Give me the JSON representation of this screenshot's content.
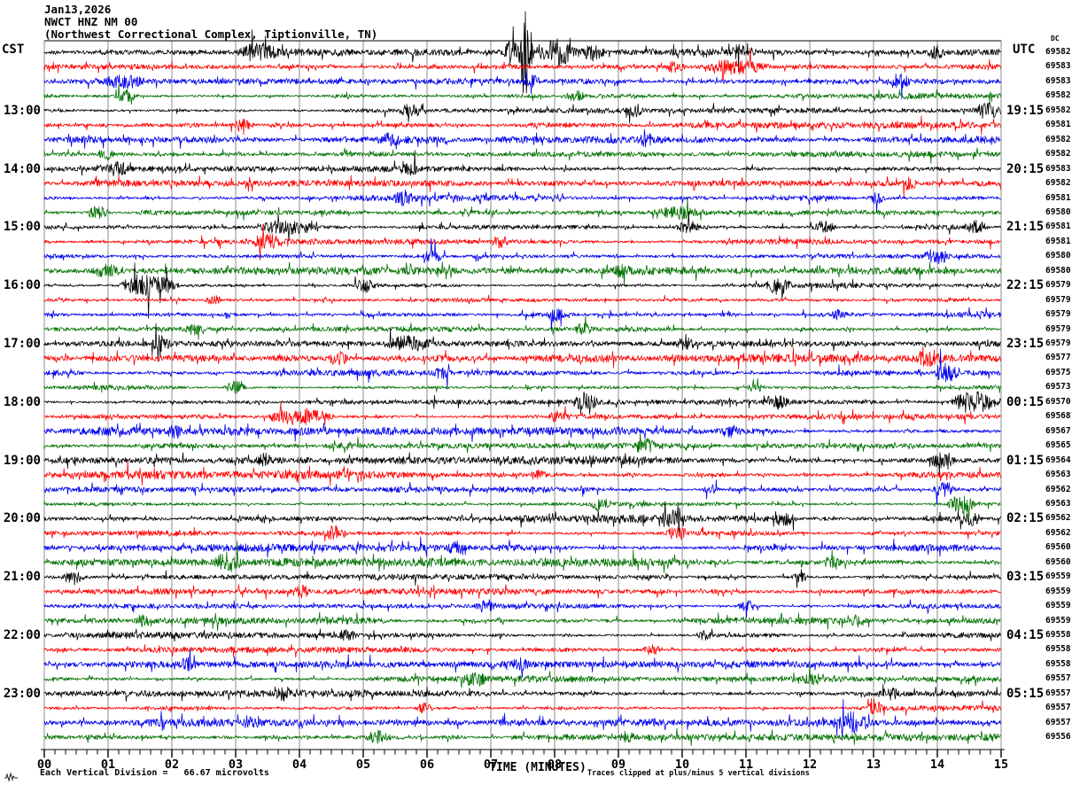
{
  "header": {
    "date": "Jan13,2026",
    "station": "NWCT HNZ NM 00",
    "location": "(Northwest Correctional Complex, Tiptionville, TN)"
  },
  "axes": {
    "left_tz": "CST",
    "right_tz": "UTC",
    "dc_label": "DC",
    "x_title": "TIME (MINUTES)",
    "x_ticks": [
      "00",
      "01",
      "02",
      "03",
      "04",
      "05",
      "06",
      "07",
      "08",
      "09",
      "10",
      "11",
      "12",
      "13",
      "14",
      "15"
    ],
    "left_times": [
      {
        "row": 4,
        "label": "13:00"
      },
      {
        "row": 8,
        "label": "14:00"
      },
      {
        "row": 12,
        "label": "15:00"
      },
      {
        "row": 16,
        "label": "16:00"
      },
      {
        "row": 20,
        "label": "17:00"
      },
      {
        "row": 24,
        "label": "18:00"
      },
      {
        "row": 28,
        "label": "19:00"
      },
      {
        "row": 32,
        "label": "20:00"
      },
      {
        "row": 36,
        "label": "21:00"
      },
      {
        "row": 40,
        "label": "22:00"
      },
      {
        "row": 44,
        "label": "23:00"
      }
    ],
    "right_times": [
      {
        "row": 4,
        "label": "19:15"
      },
      {
        "row": 8,
        "label": "20:15"
      },
      {
        "row": 12,
        "label": "21:15"
      },
      {
        "row": 16,
        "label": "22:15"
      },
      {
        "row": 20,
        "label": "23:15"
      },
      {
        "row": 24,
        "label": "00:15"
      },
      {
        "row": 28,
        "label": "01:15"
      },
      {
        "row": 32,
        "label": "02:15"
      },
      {
        "row": 36,
        "label": "03:15"
      },
      {
        "row": 40,
        "label": "04:15"
      },
      {
        "row": 44,
        "label": "05:15"
      }
    ]
  },
  "footer": {
    "scale_text": "Each Vertical Division =   66.67 microvolts",
    "clip_text": "Traces clipped at plus/minus 5 vertical divisions"
  },
  "colors": {
    "trace_cycle": [
      "#000000",
      "#ff0000",
      "#0000ee",
      "#007000"
    ],
    "gridline": "#8c8c8c",
    "axis": "#000000",
    "background": "#ffffff"
  },
  "chart_data": {
    "type": "line",
    "subtype": "helicorder-seismogram",
    "title": "NWCT HNZ NM 00  Jan13,2026",
    "xlabel": "TIME (MINUTES)",
    "x_range": [
      0,
      15
    ],
    "minutes_per_line": 15,
    "lines_per_hour": 4,
    "row_count": 48,
    "first_row_start_cst": "12:00",
    "last_row_start_cst": "23:45",
    "timezone_left": "CST",
    "timezone_right": "UTC",
    "trace_color_cycle": [
      "black",
      "red",
      "blue",
      "green"
    ],
    "grid": true,
    "dc_offsets": [
      69582,
      69583,
      69583,
      69582,
      69582,
      69581,
      69582,
      69582,
      69583,
      69582,
      69581,
      69580,
      69581,
      69581,
      69580,
      69580,
      69579,
      69579,
      69579,
      69579,
      69579,
      69577,
      69575,
      69573,
      69570,
      69568,
      69567,
      69565,
      69564,
      69563,
      69562,
      69563,
      69562,
      69562,
      69560,
      69560,
      69559,
      69559,
      69559,
      69559,
      69558,
      69558,
      69558,
      69557,
      69557,
      69557,
      69557,
      69556
    ],
    "scale_note": "Each Vertical Division =   66.67 microvolts",
    "clip_note": "Traces clipped at plus/minus 5 vertical divisions",
    "largest_event": {
      "row": 0,
      "minute": 7.5,
      "description": "large clipped spike on 12:00 CST line at ~7.5 min"
    },
    "events": [
      {
        "row": 0,
        "m0": 3.0,
        "m1": 3.7,
        "amp": 8
      },
      {
        "row": 0,
        "m0": 7.2,
        "m1": 7.45,
        "amp": 14
      },
      {
        "row": 0,
        "m0": 7.42,
        "m1": 7.68,
        "amp": 44
      },
      {
        "row": 0,
        "m0": 7.65,
        "m1": 8.4,
        "amp": 13
      },
      {
        "row": 0,
        "m0": 8.4,
        "m1": 8.8,
        "amp": 6
      },
      {
        "row": 0,
        "m0": 10.75,
        "m1": 11.0,
        "amp": 7
      },
      {
        "row": 0,
        "m0": 13.85,
        "m1": 14.15,
        "amp": 6
      },
      {
        "row": 1,
        "m0": 9.7,
        "m1": 10.05,
        "amp": 5
      },
      {
        "row": 1,
        "m0": 10.3,
        "m1": 11.4,
        "amp": 7
      },
      {
        "row": 2,
        "m0": 0.9,
        "m1": 1.6,
        "amp": 6
      },
      {
        "row": 2,
        "m0": 7.5,
        "m1": 7.8,
        "amp": 5
      },
      {
        "row": 2,
        "m0": 13.25,
        "m1": 13.6,
        "amp": 6
      },
      {
        "row": 3,
        "m0": 1.05,
        "m1": 1.5,
        "amp": 6
      },
      {
        "row": 3,
        "m0": 8.15,
        "m1": 8.5,
        "amp": 5
      },
      {
        "row": 4,
        "m0": 5.55,
        "m1": 5.95,
        "amp": 6
      },
      {
        "row": 4,
        "m0": 9.1,
        "m1": 9.4,
        "amp": 5
      },
      {
        "row": 4,
        "m0": 14.55,
        "m1": 15.0,
        "amp": 8
      },
      {
        "row": 5,
        "m0": 2.9,
        "m1": 3.3,
        "amp": 6
      },
      {
        "row": 6,
        "m0": 5.3,
        "m1": 5.6,
        "amp": 5
      },
      {
        "row": 6,
        "m0": 9.3,
        "m1": 9.6,
        "amp": 5
      },
      {
        "row": 7,
        "m0": 0.8,
        "m1": 1.1,
        "amp": 5
      },
      {
        "row": 8,
        "m0": 0.95,
        "m1": 1.35,
        "amp": 7
      },
      {
        "row": 8,
        "m0": 5.6,
        "m1": 5.9,
        "amp": 5
      },
      {
        "row": 9,
        "m0": 13.4,
        "m1": 13.7,
        "amp": 5
      },
      {
        "row": 10,
        "m0": 5.45,
        "m1": 5.85,
        "amp": 6
      },
      {
        "row": 10,
        "m0": 12.9,
        "m1": 13.2,
        "amp": 5
      },
      {
        "row": 11,
        "m0": 0.65,
        "m1": 1.05,
        "amp": 7
      },
      {
        "row": 11,
        "m0": 9.5,
        "m1": 10.4,
        "amp": 5
      },
      {
        "row": 12,
        "m0": 3.3,
        "m1": 4.3,
        "amp": 7
      },
      {
        "row": 12,
        "m0": 9.9,
        "m1": 10.3,
        "amp": 6
      },
      {
        "row": 12,
        "m0": 12.0,
        "m1": 12.45,
        "amp": 6
      },
      {
        "row": 12,
        "m0": 14.4,
        "m1": 14.8,
        "amp": 6
      },
      {
        "row": 13,
        "m0": 3.25,
        "m1": 3.7,
        "amp": 8
      },
      {
        "row": 13,
        "m0": 7.0,
        "m1": 7.3,
        "amp": 5
      },
      {
        "row": 14,
        "m0": 5.9,
        "m1": 6.3,
        "amp": 6
      },
      {
        "row": 14,
        "m0": 13.75,
        "m1": 14.2,
        "amp": 7
      },
      {
        "row": 15,
        "m0": 0.75,
        "m1": 1.2,
        "amp": 6
      },
      {
        "row": 15,
        "m0": 8.9,
        "m1": 9.2,
        "amp": 5
      },
      {
        "row": 16,
        "m0": 1.15,
        "m1": 2.15,
        "amp": 12
      },
      {
        "row": 16,
        "m0": 4.85,
        "m1": 5.2,
        "amp": 7
      },
      {
        "row": 16,
        "m0": 11.3,
        "m1": 11.75,
        "amp": 8
      },
      {
        "row": 17,
        "m0": 2.5,
        "m1": 2.8,
        "amp": 5
      },
      {
        "row": 18,
        "m0": 7.85,
        "m1": 8.2,
        "amp": 6
      },
      {
        "row": 18,
        "m0": 12.3,
        "m1": 12.6,
        "amp": 5
      },
      {
        "row": 19,
        "m0": 2.2,
        "m1": 2.5,
        "amp": 5
      },
      {
        "row": 19,
        "m0": 8.3,
        "m1": 8.6,
        "amp": 5
      },
      {
        "row": 20,
        "m0": 1.65,
        "m1": 2.0,
        "amp": 7
      },
      {
        "row": 20,
        "m0": 5.3,
        "m1": 6.15,
        "amp": 7
      },
      {
        "row": 20,
        "m0": 9.9,
        "m1": 10.2,
        "amp": 5
      },
      {
        "row": 21,
        "m0": 4.4,
        "m1": 4.8,
        "amp": 6
      },
      {
        "row": 21,
        "m0": 13.65,
        "m1": 14.1,
        "amp": 7
      },
      {
        "row": 22,
        "m0": 6.1,
        "m1": 6.4,
        "amp": 5
      },
      {
        "row": 22,
        "m0": 13.9,
        "m1": 14.35,
        "amp": 9
      },
      {
        "row": 23,
        "m0": 2.8,
        "m1": 3.2,
        "amp": 6
      },
      {
        "row": 23,
        "m0": 11.0,
        "m1": 11.3,
        "amp": 5
      },
      {
        "row": 24,
        "m0": 8.25,
        "m1": 8.7,
        "amp": 7
      },
      {
        "row": 24,
        "m0": 11.25,
        "m1": 11.7,
        "amp": 7
      },
      {
        "row": 24,
        "m0": 14.15,
        "m1": 15.0,
        "amp": 11
      },
      {
        "row": 25,
        "m0": 3.4,
        "m1": 4.6,
        "amp": 9
      },
      {
        "row": 25,
        "m0": 7.9,
        "m1": 8.2,
        "amp": 5
      },
      {
        "row": 26,
        "m0": 1.9,
        "m1": 2.2,
        "amp": 5
      },
      {
        "row": 26,
        "m0": 10.6,
        "m1": 10.9,
        "amp": 5
      },
      {
        "row": 27,
        "m0": 9.25,
        "m1": 9.6,
        "amp": 6
      },
      {
        "row": 28,
        "m0": 3.3,
        "m1": 3.6,
        "amp": 5
      },
      {
        "row": 28,
        "m0": 13.85,
        "m1": 14.3,
        "amp": 7
      },
      {
        "row": 29,
        "m0": 7.6,
        "m1": 7.9,
        "amp": 5
      },
      {
        "row": 30,
        "m0": 10.3,
        "m1": 10.6,
        "amp": 5
      },
      {
        "row": 30,
        "m0": 13.9,
        "m1": 14.3,
        "amp": 8
      },
      {
        "row": 31,
        "m0": 8.55,
        "m1": 8.9,
        "amp": 7
      },
      {
        "row": 31,
        "m0": 14.15,
        "m1": 14.6,
        "amp": 11
      },
      {
        "row": 32,
        "m0": 9.65,
        "m1": 10.0,
        "amp": 7
      },
      {
        "row": 32,
        "m0": 11.4,
        "m1": 11.8,
        "amp": 7
      },
      {
        "row": 32,
        "m0": 14.3,
        "m1": 14.7,
        "amp": 6
      },
      {
        "row": 33,
        "m0": 4.35,
        "m1": 4.75,
        "amp": 7
      },
      {
        "row": 33,
        "m0": 9.75,
        "m1": 10.1,
        "amp": 6
      },
      {
        "row": 34,
        "m0": 6.3,
        "m1": 6.6,
        "amp": 5
      },
      {
        "row": 35,
        "m0": 2.65,
        "m1": 3.1,
        "amp": 9
      },
      {
        "row": 35,
        "m0": 12.2,
        "m1": 12.5,
        "amp": 5
      },
      {
        "row": 36,
        "m0": 0.25,
        "m1": 0.65,
        "amp": 6
      },
      {
        "row": 36,
        "m0": 11.7,
        "m1": 12.0,
        "amp": 5
      },
      {
        "row": 37,
        "m0": 3.9,
        "m1": 4.2,
        "amp": 5
      },
      {
        "row": 38,
        "m0": 6.75,
        "m1": 7.1,
        "amp": 6
      },
      {
        "row": 38,
        "m0": 10.85,
        "m1": 11.2,
        "amp": 6
      },
      {
        "row": 39,
        "m0": 1.4,
        "m1": 1.7,
        "amp": 5
      },
      {
        "row": 39,
        "m0": 12.6,
        "m1": 12.9,
        "amp": 5
      },
      {
        "row": 40,
        "m0": 4.6,
        "m1": 4.9,
        "amp": 5
      },
      {
        "row": 40,
        "m0": 10.2,
        "m1": 10.5,
        "amp": 5
      },
      {
        "row": 41,
        "m0": 9.35,
        "m1": 9.7,
        "amp": 5
      },
      {
        "row": 42,
        "m0": 2.1,
        "m1": 2.4,
        "amp": 5
      },
      {
        "row": 42,
        "m0": 7.3,
        "m1": 7.6,
        "amp": 5
      },
      {
        "row": 43,
        "m0": 6.5,
        "m1": 6.95,
        "amp": 6
      },
      {
        "row": 43,
        "m0": 11.9,
        "m1": 12.2,
        "amp": 5
      },
      {
        "row": 44,
        "m0": 3.6,
        "m1": 3.9,
        "amp": 5
      },
      {
        "row": 44,
        "m0": 13.1,
        "m1": 13.4,
        "amp": 5
      },
      {
        "row": 45,
        "m0": 5.8,
        "m1": 6.1,
        "amp": 5
      },
      {
        "row": 45,
        "m0": 12.85,
        "m1": 13.2,
        "amp": 6
      },
      {
        "row": 46,
        "m0": 3.1,
        "m1": 3.4,
        "amp": 5
      },
      {
        "row": 46,
        "m0": 12.35,
        "m1": 12.95,
        "amp": 10
      },
      {
        "row": 47,
        "m0": 5.0,
        "m1": 5.45,
        "amp": 6
      },
      {
        "row": 47,
        "m0": 9.0,
        "m1": 9.3,
        "amp": 5
      }
    ]
  }
}
